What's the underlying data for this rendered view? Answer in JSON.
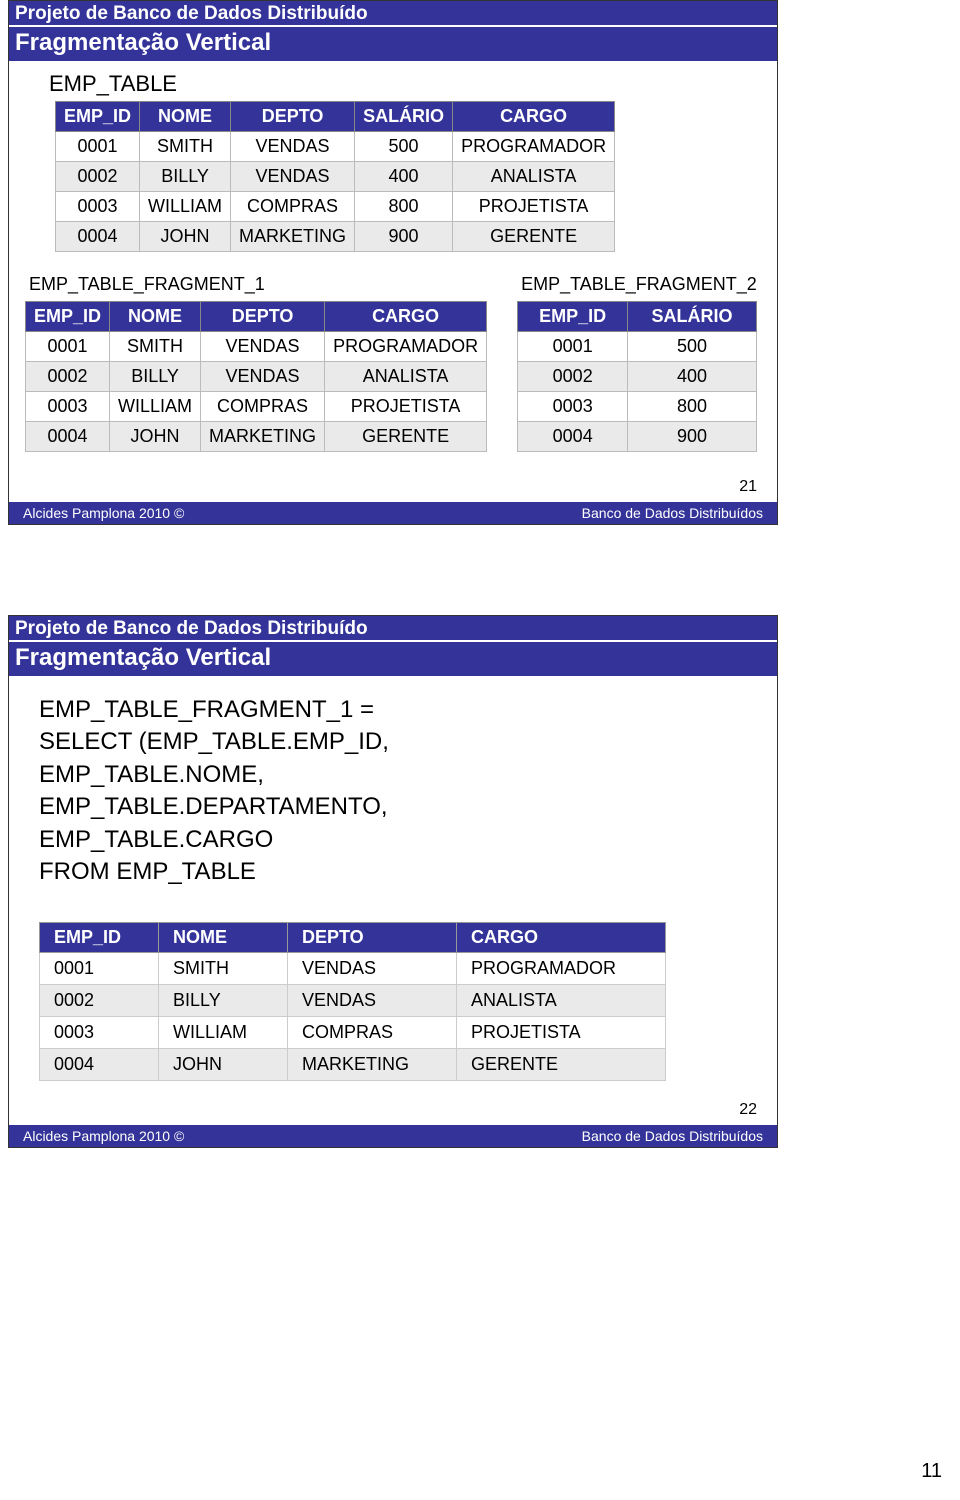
{
  "colors": {
    "header_bg": "#333399",
    "header_text": "#ffffff",
    "row_odd": "#ffffff",
    "row_even": "#eaeaea",
    "border": "#bbbbbb"
  },
  "slide1": {
    "title_top": "Projeto de Banco de Dados Distribuído",
    "title_sub": "Fragmentação Vertical",
    "main_label": "EMP_TABLE",
    "main_table": {
      "columns": [
        "EMP_ID",
        "NOME",
        "DEPTO",
        "SALÁRIO",
        "CARGO"
      ],
      "rows": [
        [
          "0001",
          "SMITH",
          "VENDAS",
          "500",
          "PROGRAMADOR"
        ],
        [
          "0002",
          "BILLY",
          "VENDAS",
          "400",
          "ANALISTA"
        ],
        [
          "0003",
          "WILLIAM",
          "COMPRAS",
          "800",
          "PROJETISTA"
        ],
        [
          "0004",
          "JOHN",
          "MARKETING",
          "900",
          "GERENTE"
        ]
      ]
    },
    "frag1_label": "EMP_TABLE_FRAGMENT_1",
    "frag1_table": {
      "columns": [
        "EMP_ID",
        "NOME",
        "DEPTO",
        "CARGO"
      ],
      "rows": [
        [
          "0001",
          "SMITH",
          "VENDAS",
          "PROGRAMADOR"
        ],
        [
          "0002",
          "BILLY",
          "VENDAS",
          "ANALISTA"
        ],
        [
          "0003",
          "WILLIAM",
          "COMPRAS",
          "PROJETISTA"
        ],
        [
          "0004",
          "JOHN",
          "MARKETING",
          "GERENTE"
        ]
      ]
    },
    "frag2_label": "EMP_TABLE_FRAGMENT_2",
    "frag2_table": {
      "columns": [
        "EMP_ID",
        "SALÁRIO"
      ],
      "rows": [
        [
          "0001",
          "500"
        ],
        [
          "0002",
          "400"
        ],
        [
          "0003",
          "800"
        ],
        [
          "0004",
          "900"
        ]
      ]
    },
    "slide_number": "21",
    "footer_left": "Alcides Pamplona 2010 ©",
    "footer_right": "Banco de Dados Distribuídos"
  },
  "slide2": {
    "title_top": "Projeto de Banco de Dados Distribuído",
    "title_sub": "Fragmentação Vertical",
    "sql_lines": [
      "EMP_TABLE_FRAGMENT_1 =",
      "SELECT (EMP_TABLE.EMP_ID,",
      "EMP_TABLE.NOME,",
      "EMP_TABLE.DEPARTAMENTO,",
      "EMP_TABLE.CARGO",
      "FROM EMP_TABLE"
    ],
    "table": {
      "columns": [
        "EMP_ID",
        "NOME",
        "DEPTO",
        "CARGO"
      ],
      "rows": [
        [
          "0001",
          "SMITH",
          "VENDAS",
          "PROGRAMADOR"
        ],
        [
          "0002",
          "BILLY",
          "VENDAS",
          "ANALISTA"
        ],
        [
          "0003",
          "WILLIAM",
          "COMPRAS",
          "PROJETISTA"
        ],
        [
          "0004",
          "JOHN",
          "MARKETING",
          "GERENTE"
        ]
      ],
      "col_widths": [
        "90px",
        "100px",
        "140px",
        "180px"
      ]
    },
    "slide_number": "22",
    "footer_left": "Alcides Pamplona 2010 ©",
    "footer_right": "Banco de Dados Distribuídos"
  },
  "page_number": "11"
}
